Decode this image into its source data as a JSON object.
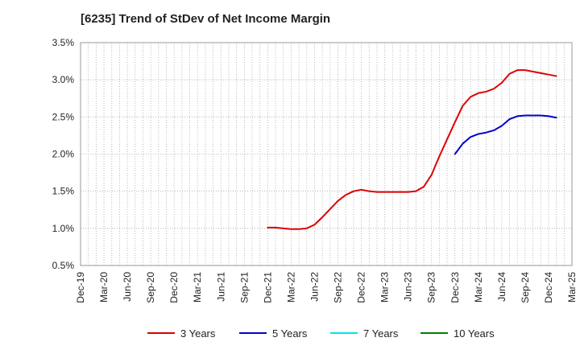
{
  "chart_data": {
    "type": "line",
    "title": "[6235]  Trend of StDev of Net Income Margin",
    "xlabel": "",
    "ylabel": "",
    "x_ticks": [
      "Dec-19",
      "Mar-20",
      "Jun-20",
      "Sep-20",
      "Dec-20",
      "Mar-21",
      "Jun-21",
      "Sep-21",
      "Dec-21",
      "Mar-22",
      "Jun-22",
      "Sep-22",
      "Dec-22",
      "Mar-23",
      "Jun-23",
      "Sep-23",
      "Dec-23",
      "Mar-24",
      "Jun-24",
      "Sep-24",
      "Dec-24",
      "Mar-25"
    ],
    "y_ticks": [
      "0.5%",
      "1.0%",
      "1.5%",
      "2.0%",
      "2.5%",
      "3.0%",
      "3.5%"
    ],
    "ylim": [
      0.5,
      3.5
    ],
    "grid": true,
    "legend_position": "bottom",
    "series": [
      {
        "name": "3 Years",
        "color": "#dd0000",
        "points": [
          [
            "Dec-21",
            1.01
          ],
          [
            "Jan-22",
            1.01
          ],
          [
            "Feb-22",
            1.0
          ],
          [
            "Mar-22",
            0.99
          ],
          [
            "Apr-22",
            0.99
          ],
          [
            "May-22",
            1.0
          ],
          [
            "Jun-22",
            1.05
          ],
          [
            "Jul-22",
            1.15
          ],
          [
            "Aug-22",
            1.26
          ],
          [
            "Sep-22",
            1.37
          ],
          [
            "Oct-22",
            1.45
          ],
          [
            "Nov-22",
            1.5
          ],
          [
            "Dec-22",
            1.52
          ],
          [
            "Jan-23",
            1.5
          ],
          [
            "Feb-23",
            1.49
          ],
          [
            "Mar-23",
            1.49
          ],
          [
            "Apr-23",
            1.49
          ],
          [
            "May-23",
            1.49
          ],
          [
            "Jun-23",
            1.49
          ],
          [
            "Jul-23",
            1.5
          ],
          [
            "Aug-23",
            1.56
          ],
          [
            "Sep-23",
            1.72
          ],
          [
            "Oct-23",
            1.97
          ],
          [
            "Nov-23",
            2.2
          ],
          [
            "Dec-23",
            2.43
          ],
          [
            "Jan-24",
            2.65
          ],
          [
            "Feb-24",
            2.77
          ],
          [
            "Mar-24",
            2.82
          ],
          [
            "Apr-24",
            2.84
          ],
          [
            "May-24",
            2.88
          ],
          [
            "Jun-24",
            2.96
          ],
          [
            "Jul-24",
            3.08
          ],
          [
            "Aug-24",
            3.13
          ],
          [
            "Sep-24",
            3.13
          ],
          [
            "Oct-24",
            3.11
          ],
          [
            "Nov-24",
            3.09
          ],
          [
            "Dec-24",
            3.07
          ],
          [
            "Jan-25",
            3.05
          ]
        ]
      },
      {
        "name": "5 Years",
        "color": "#0000cc",
        "points": [
          [
            "Dec-23",
            2.0
          ],
          [
            "Jan-24",
            2.14
          ],
          [
            "Feb-24",
            2.23
          ],
          [
            "Mar-24",
            2.27
          ],
          [
            "Apr-24",
            2.29
          ],
          [
            "May-24",
            2.32
          ],
          [
            "Jun-24",
            2.38
          ],
          [
            "Jul-24",
            2.47
          ],
          [
            "Aug-24",
            2.51
          ],
          [
            "Sep-24",
            2.52
          ],
          [
            "Oct-24",
            2.52
          ],
          [
            "Nov-24",
            2.52
          ],
          [
            "Dec-24",
            2.51
          ],
          [
            "Jan-25",
            2.49
          ]
        ]
      },
      {
        "name": "7 Years",
        "color": "#00e5ee",
        "points": []
      },
      {
        "name": "10 Years",
        "color": "#008000",
        "points": []
      }
    ]
  }
}
